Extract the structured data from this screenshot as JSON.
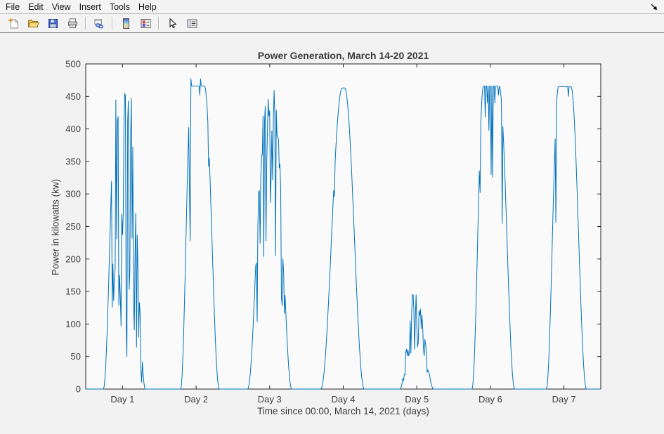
{
  "window": {
    "menu_items": [
      "File",
      "Edit",
      "View",
      "Insert",
      "Tools",
      "Help"
    ]
  },
  "toolbar": {
    "buttons": [
      {
        "id": "new-figure",
        "icon": "new-figure-icon",
        "sep_after": false
      },
      {
        "id": "open-file",
        "icon": "open-file-icon",
        "sep_after": false
      },
      {
        "id": "save-figure",
        "icon": "save-figure-icon",
        "sep_after": false
      },
      {
        "id": "print-figure",
        "icon": "print-figure-icon",
        "sep_after": true
      },
      {
        "id": "link-plot",
        "icon": "link-plot-icon",
        "sep_after": true
      },
      {
        "id": "insert-colorbar",
        "icon": "insert-colorbar-icon",
        "sep_after": false
      },
      {
        "id": "insert-legend",
        "icon": "insert-legend-icon",
        "sep_after": true
      },
      {
        "id": "edit-plot",
        "icon": "edit-plot-icon",
        "sep_after": false
      },
      {
        "id": "plot-browser",
        "icon": "plot-browser-icon",
        "sep_after": false
      }
    ]
  },
  "chart_data": {
    "type": "line",
    "title": "Power Generation, March 14-20 2021",
    "xlabel": "Time since 00:00, March 14, 2021 (days)",
    "ylabel": "Power in kilowatts (kw)",
    "xlim": [
      0.5,
      7.5
    ],
    "ylim": [
      0,
      500
    ],
    "y_ticks": [
      0,
      50,
      100,
      150,
      200,
      250,
      300,
      350,
      400,
      450,
      500
    ],
    "x_ticks": [
      {
        "value": 1,
        "label": "Day 1"
      },
      {
        "value": 2,
        "label": "Day 2"
      },
      {
        "value": 3,
        "label": "Day 3"
      },
      {
        "value": 4,
        "label": "Day 4"
      },
      {
        "value": 5,
        "label": "Day 5"
      },
      {
        "value": 6,
        "label": "Day 6"
      },
      {
        "value": 7,
        "label": "Day 7"
      }
    ],
    "line_color": "#0072BD",
    "axis_color": "#262626",
    "grid": false,
    "box": true,
    "tick_dir": "in",
    "noise_seed": 20210314,
    "sample_step_days": 0.01,
    "days": [
      {
        "day": 1,
        "peak_kw": 476,
        "start": 0.74,
        "rise_end": 0.92,
        "fall_start": 1.1,
        "end": 1.31,
        "chaos": {
          "from": 0.86,
          "to": 1.26,
          "drop_prob": 0.55,
          "low_min": 0.08,
          "low_max": 0.6,
          "high_min": 0.8
        },
        "spikes": []
      },
      {
        "day": 2,
        "peak_kw": 466,
        "start": 1.79,
        "rise_end": 1.935,
        "fall_start": 2.115,
        "end": 2.315,
        "chaos": null,
        "spikes": [
          {
            "t": 1.905,
            "kw": 303
          },
          {
            "t": 1.915,
            "kw": 228
          },
          {
            "t": 1.932,
            "kw": 477
          },
          {
            "t": 2.045,
            "kw": 452
          },
          {
            "t": 2.06,
            "kw": 477
          },
          {
            "t": 2.165,
            "kw": 342
          }
        ]
      },
      {
        "day": 3,
        "peak_kw": 467,
        "start": 2.7,
        "rise_end": 2.95,
        "fall_start": 3.06,
        "end": 3.3,
        "chaos": {
          "from": 2.82,
          "to": 3.2,
          "drop_prob": 0.45,
          "low_min": 0.35,
          "low_max": 0.75,
          "high_min": 0.85
        },
        "spikes": []
      },
      {
        "day": 4,
        "peak_kw": 463,
        "start": 3.695,
        "rise_end": 3.985,
        "fall_start": 4.02,
        "end": 4.285,
        "chaos": null,
        "spikes": [
          {
            "t": 3.875,
            "kw": 296
          }
        ]
      },
      {
        "day": 5,
        "peak_kw": 148,
        "start": 4.77,
        "rise_end": 4.955,
        "fall_start": 5.0,
        "end": 5.23,
        "chaos": {
          "from": 4.82,
          "to": 5.17,
          "drop_prob": 0.5,
          "low_min": 0.4,
          "low_max": 0.75,
          "high_min": 0.8
        },
        "spikes": []
      },
      {
        "day": 6,
        "peak_kw": 466,
        "start": 5.75,
        "rise_end": 5.905,
        "fall_start": 6.12,
        "end": 6.33,
        "chaos": null,
        "spikes": [
          {
            "t": 5.86,
            "kw": 302
          },
          {
            "t": 5.925,
            "kw": 418
          },
          {
            "t": 5.955,
            "kw": 440
          },
          {
            "t": 5.975,
            "kw": 398
          },
          {
            "t": 6.005,
            "kw": 330
          },
          {
            "t": 6.03,
            "kw": 326
          },
          {
            "t": 6.055,
            "kw": 440
          },
          {
            "t": 6.105,
            "kw": 452
          },
          {
            "t": 6.16,
            "kw": 255
          }
        ]
      },
      {
        "day": 7,
        "peak_kw": 465,
        "start": 6.76,
        "rise_end": 6.925,
        "fall_start": 7.095,
        "end": 7.305,
        "chaos": null,
        "spikes": [
          {
            "t": 6.885,
            "kw": 256
          },
          {
            "t": 7.06,
            "kw": 450
          }
        ]
      }
    ]
  }
}
